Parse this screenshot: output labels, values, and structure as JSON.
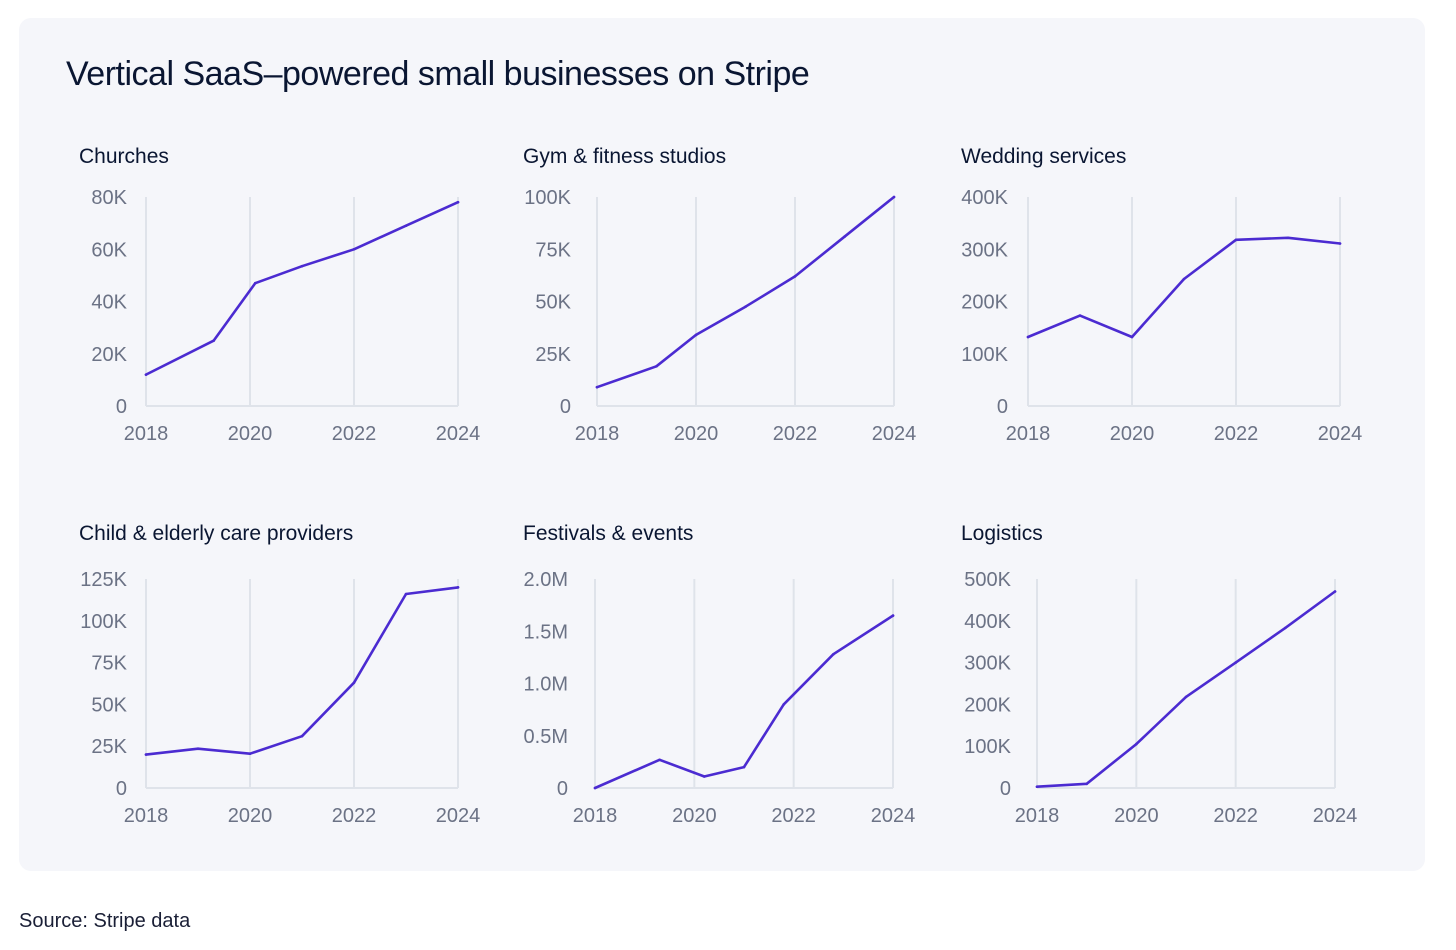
{
  "title": "Vertical SaaS–powered small businesses on Stripe",
  "source": "Source: Stripe data",
  "colors": {
    "line": "#4b2bd1",
    "card_bg": "#f5f6fa",
    "grid": "#dfe3ea",
    "tick_text": "#6b7285"
  },
  "chart_data": [
    {
      "type": "line",
      "title": "Churches",
      "x": [
        2018,
        2019.3,
        2020.1,
        2021,
        2022,
        2023,
        2024
      ],
      "y": [
        12000,
        25000,
        47000,
        53500,
        60000,
        69000,
        78000
      ],
      "xticks": [
        "2018",
        "2020",
        "2022",
        "2024"
      ],
      "yticks": [
        "0",
        "20K",
        "40K",
        "60K",
        "80K"
      ],
      "ylim": [
        0,
        80000
      ],
      "xlim": [
        2018,
        2024
      ],
      "grid": "vertical"
    },
    {
      "type": "line",
      "title": "Gym & fitness studios",
      "x": [
        2018,
        2019.2,
        2020,
        2021,
        2022,
        2023,
        2024
      ],
      "y": [
        9000,
        19000,
        34000,
        47500,
        62000,
        81000,
        100000
      ],
      "xticks": [
        "2018",
        "2020",
        "2022",
        "2024"
      ],
      "yticks": [
        "0",
        "25K",
        "50K",
        "75K",
        "100K"
      ],
      "ylim": [
        0,
        100000
      ],
      "xlim": [
        2018,
        2024
      ],
      "grid": "vertical"
    },
    {
      "type": "line",
      "title": "Wedding services",
      "x": [
        2018,
        2019,
        2020,
        2021,
        2022,
        2023,
        2024
      ],
      "y": [
        132000,
        173000,
        132000,
        243000,
        318000,
        322000,
        311000
      ],
      "xticks": [
        "2018",
        "2020",
        "2022",
        "2024"
      ],
      "yticks": [
        "0",
        "100K",
        "200K",
        "300K",
        "400K"
      ],
      "ylim": [
        0,
        400000
      ],
      "xlim": [
        2018,
        2024
      ],
      "grid": "vertical"
    },
    {
      "type": "line",
      "title": "Child & elderly care providers",
      "x": [
        2018,
        2019,
        2020,
        2021,
        2022,
        2023,
        2024
      ],
      "y": [
        20000,
        23500,
        20500,
        31000,
        63000,
        116000,
        120000
      ],
      "xticks": [
        "2018",
        "2020",
        "2022",
        "2024"
      ],
      "yticks": [
        "0",
        "25K",
        "50K",
        "75K",
        "100K",
        "125K"
      ],
      "ylim": [
        0,
        125000
      ],
      "xlim": [
        2018,
        2024
      ],
      "grid": "vertical"
    },
    {
      "type": "line",
      "title": "Festivals & events",
      "x": [
        2018,
        2019.3,
        2020.2,
        2021,
        2021.8,
        2022.8,
        2024
      ],
      "y": [
        0,
        270000,
        110000,
        200000,
        800000,
        1280000,
        1650000
      ],
      "xticks": [
        "2018",
        "2020",
        "2022",
        "2024"
      ],
      "yticks": [
        "0",
        "0.5M",
        "1.0M",
        "1.5M",
        "2.0M"
      ],
      "ylim": [
        0,
        2000000
      ],
      "xlim": [
        2018,
        2024
      ],
      "grid": "vertical"
    },
    {
      "type": "line",
      "title": "Logistics",
      "x": [
        2018,
        2019,
        2020,
        2021,
        2022,
        2023,
        2024
      ],
      "y": [
        3000,
        10000,
        105000,
        218000,
        300000,
        383000,
        470000
      ],
      "xticks": [
        "2018",
        "2020",
        "2022",
        "2024"
      ],
      "yticks": [
        "0",
        "100K",
        "200K",
        "300K",
        "400K",
        "500K"
      ],
      "ylim": [
        0,
        500000
      ],
      "xlim": [
        2018,
        2024
      ],
      "grid": "vertical"
    }
  ]
}
